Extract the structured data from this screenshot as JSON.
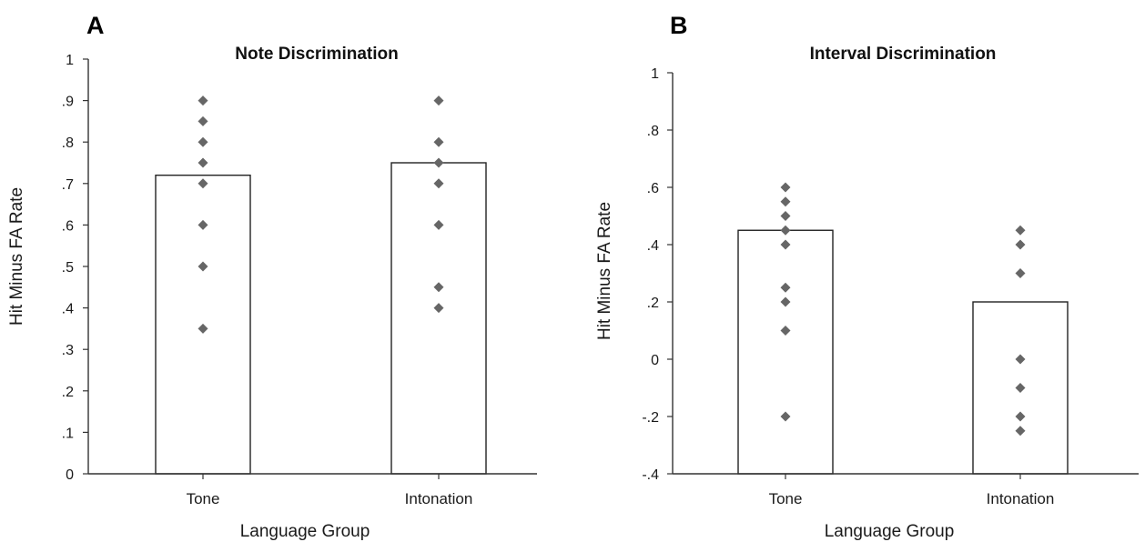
{
  "colors": {
    "bar_fill": "#ffffff",
    "bar_stroke": "#222222",
    "point": "#666666",
    "axis": "#333333"
  },
  "chart_data": [
    {
      "type": "bar",
      "panel": "A",
      "title": "Note Discrimination",
      "xlabel": "Language Group",
      "ylabel": "Hit Minus FA Rate",
      "ylim": [
        0,
        1
      ],
      "yticks": [
        0,
        0.1,
        0.2,
        0.3,
        0.4,
        0.5,
        0.6,
        0.7,
        0.8,
        0.9,
        1
      ],
      "ytick_labels": [
        "0",
        ".1",
        ".2",
        ".3",
        ".4",
        ".5",
        ".6",
        ".7",
        ".8",
        ".9",
        "1"
      ],
      "categories": [
        "Tone",
        "Intonation"
      ],
      "values": [
        0.72,
        0.75
      ],
      "points": [
        [
          0.9,
          0.85,
          0.8,
          0.75,
          0.7,
          0.6,
          0.5,
          0.35
        ],
        [
          0.9,
          0.8,
          0.75,
          0.7,
          0.6,
          0.45,
          0.4
        ]
      ],
      "grid": false,
      "legend": "none"
    },
    {
      "type": "bar",
      "panel": "B",
      "title": "Interval Discrimination",
      "xlabel": "Language Group",
      "ylabel": "Hit Minus FA Rate",
      "ylim": [
        -0.4,
        1
      ],
      "yticks": [
        -0.4,
        -0.2,
        0,
        0.2,
        0.4,
        0.6,
        0.8,
        1
      ],
      "ytick_labels": [
        "-.4",
        "-.2",
        "0",
        ".2",
        ".4",
        ".6",
        ".8",
        "1"
      ],
      "categories": [
        "Tone",
        "Intonation"
      ],
      "values": [
        0.45,
        0.2
      ],
      "points": [
        [
          0.6,
          0.55,
          0.5,
          0.45,
          0.4,
          0.25,
          0.2,
          0.1,
          -0.2
        ],
        [
          0.45,
          0.4,
          0.3,
          0.0,
          -0.1,
          -0.2,
          -0.25
        ]
      ],
      "grid": false,
      "legend": "none"
    }
  ]
}
